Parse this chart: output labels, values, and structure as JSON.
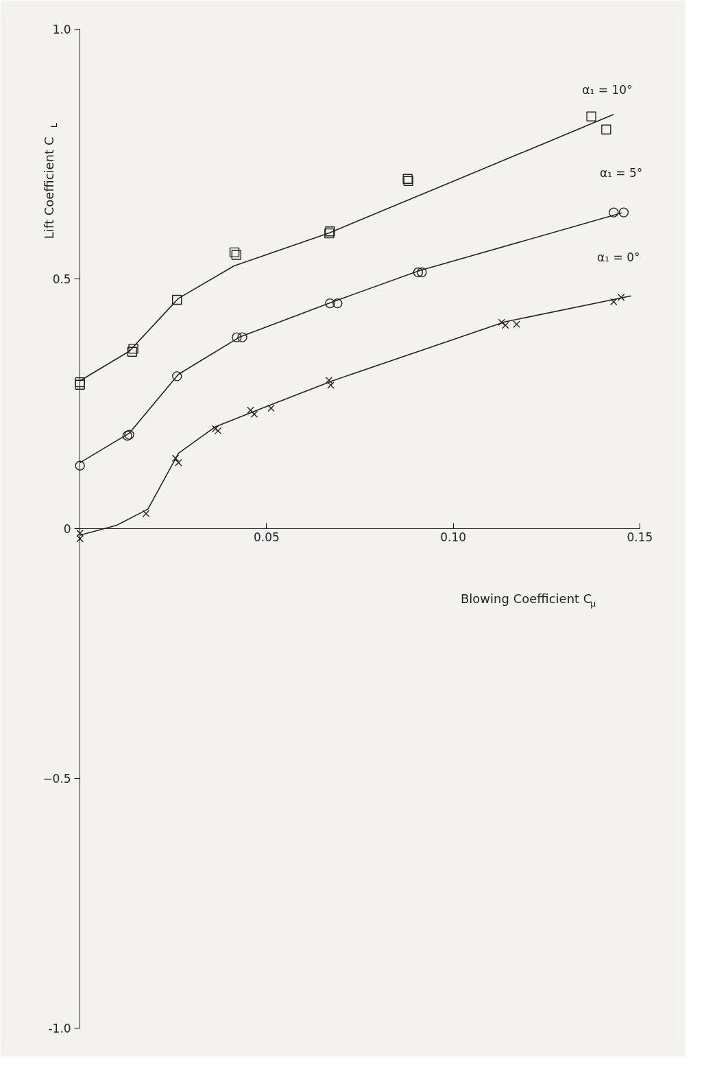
{
  "chart_data": {
    "type": "scatter",
    "xlabel": "Blowing Coefficient C$_{μ}$",
    "ylabel": "Lift Coefficient C$_{L}$",
    "xlim": [
      0,
      0.15
    ],
    "ylim": [
      -1,
      1
    ],
    "xticks": [
      0.05,
      {
        "value": 0.1,
        "label": "0.10"
      },
      0.15
    ],
    "yticks": [
      {
        "value": -1,
        "label": "-1.0"
      },
      -0.5,
      0,
      0.5,
      {
        "value": 1,
        "label": "1.0"
      }
    ],
    "grid": false,
    "series": [
      {
        "name": "α₁ = 10°",
        "marker": "square",
        "color": "#222222",
        "x": [
          0,
          0,
          0.014,
          0.0143,
          0.026,
          0.0414,
          0.0419,
          0.0668,
          0.067,
          0.0878,
          0.088,
          0.137,
          0.141
        ],
        "values": [
          0.288,
          0.293,
          0.354,
          0.36,
          0.458,
          0.553,
          0.548,
          0.591,
          0.595,
          0.7,
          0.696,
          0.825,
          0.799
        ]
      },
      {
        "name": "α₁ = 5°",
        "marker": "circle",
        "color": "#222222",
        "x": [
          0,
          0.0127,
          0.0132,
          0.026,
          0.042,
          0.0435,
          0.067,
          0.069,
          0.0906,
          0.0916,
          0.143,
          0.1457
        ],
        "values": [
          0.126,
          0.186,
          0.188,
          0.305,
          0.383,
          0.383,
          0.451,
          0.451,
          0.513,
          0.513,
          0.633,
          0.633
        ]
      },
      {
        "name": "α₁ = 0°",
        "marker": "cross",
        "color": "#222222",
        "x": [
          0,
          0,
          0.0177,
          0.0256,
          0.0264,
          0.0363,
          0.037,
          0.0457,
          0.0467,
          0.0512,
          0.0667,
          0.0672,
          0.113,
          0.114,
          0.117,
          0.143,
          0.145
        ],
        "values": [
          -0.009,
          -0.02,
          0.03,
          0.141,
          0.132,
          0.2,
          0.196,
          0.237,
          0.229,
          0.241,
          0.297,
          0.287,
          0.413,
          0.407,
          0.409,
          0.454,
          0.463
        ]
      },
      {
        "type": "line",
        "color": "#222222",
        "x": [
          0,
          0.0132,
          0.0264,
          0.0413,
          0.0668,
          0.143
        ],
        "values": [
          0.296,
          0.355,
          0.461,
          0.526,
          0.592,
          0.829
        ]
      },
      {
        "type": "line",
        "color": "#222222",
        "x": [
          0,
          0.0132,
          0.0264,
          0.0429,
          0.0677,
          0.0908,
          0.1452
        ],
        "values": [
          0.132,
          0.191,
          0.309,
          0.384,
          0.454,
          0.516,
          0.632
        ]
      },
      {
        "type": "line",
        "color": "#222222",
        "x": [
          0,
          0.0099,
          0.0182,
          0.0264,
          0.0363,
          0.0495,
          0.0677,
          0.1139,
          0.1477
        ],
        "values": [
          -0.013,
          0.007,
          0.039,
          0.151,
          0.204,
          0.243,
          0.296,
          0.414,
          0.466
        ]
      }
    ]
  }
}
